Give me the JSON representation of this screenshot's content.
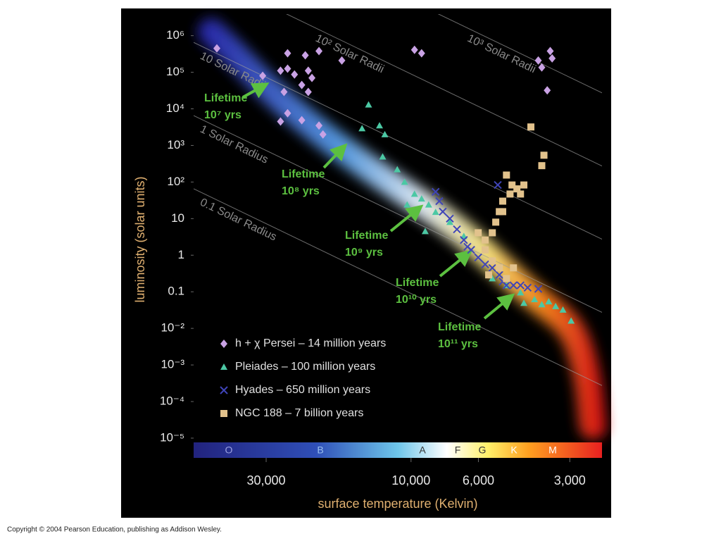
{
  "chart_data": {
    "type": "scatter",
    "x_label": "surface temperature (Kelvin)",
    "y_label": "luminosity (solar units)",
    "x_log": true,
    "y_log": true,
    "x_reversed": true,
    "xlim": [
      52000,
      2350
    ],
    "ylim": [
      8e-06,
      2000000
    ],
    "xticks": [
      {
        "value": 30000,
        "label": "30,000"
      },
      {
        "value": 10000,
        "label": "10,000"
      },
      {
        "value": 6000,
        "label": "6,000"
      },
      {
        "value": 3000,
        "label": "3,000"
      }
    ],
    "yticks": [
      {
        "value": 1000000,
        "label": "10⁶"
      },
      {
        "value": 100000,
        "label": "10⁵"
      },
      {
        "value": 10000,
        "label": "10⁴"
      },
      {
        "value": 1000,
        "label": "10³"
      },
      {
        "value": 100,
        "label": "10²"
      },
      10,
      1,
      0.1,
      {
        "value": 0.01,
        "label": "10⁻²"
      },
      {
        "value": 0.001,
        "label": "10⁻³"
      },
      {
        "value": 0.0001,
        "label": "10⁻⁴"
      },
      {
        "value": 1e-05,
        "label": "10⁻⁵"
      }
    ],
    "spectral_classes": [
      "O",
      "B",
      "A",
      "F",
      "G",
      "K",
      "M"
    ],
    "radius_lines": [
      {
        "radius": 0.1,
        "label": "0.1 Solar Radius"
      },
      {
        "radius": 1,
        "label": "1 Solar Radius"
      },
      {
        "radius": 10,
        "label": "10 Solar Radii"
      },
      {
        "radius": 100,
        "label": "10² Solar Radii"
      },
      {
        "radius": 1000,
        "label": "10³ Solar Radii"
      }
    ],
    "annotations": [
      [
        "Lifetime",
        "10⁷ yrs"
      ],
      [
        "Lifetime",
        "10⁸ yrs"
      ],
      [
        "Lifetime",
        "10⁹ yrs"
      ],
      [
        "Lifetime",
        "10¹⁰ yrs"
      ],
      [
        "Lifetime",
        "10¹¹ yrs"
      ]
    ],
    "series": [
      {
        "name": "h + χ Persei – 14 million years",
        "color": "#c9a2e4",
        "marker": "diamond",
        "x": [
          43600,
          30800,
          25500,
          22300,
          20100,
          25500,
          26900,
          24200,
          21800,
          21200,
          22900,
          26200,
          21800,
          25500,
          22900,
          20100,
          19500,
          26900,
          16900,
          9740,
          9230,
          3810,
          3710,
          3480,
          3430,
          3560
        ],
        "values": [
          450000,
          80000,
          330000,
          290000,
          380000,
          125000,
          110000,
          87000,
          110000,
          70000,
          45000,
          29000,
          29000,
          7600,
          4900,
          3500,
          2000,
          4500,
          210000,
          410000,
          330000,
          210000,
          135000,
          380000,
          240000,
          32000
        ]
      },
      {
        "name": "Pleiades – 100 million years",
        "color": "#4cc8a4",
        "marker": "triangle",
        "x": [
          13800,
          14500,
          12700,
          12200,
          12400,
          11100,
          10500,
          9740,
          9230,
          8750,
          10300,
          8300,
          8980,
          7450,
          6700,
          5400,
          4850,
          4360,
          3920,
          3520,
          3340,
          3160,
          2970,
          4250,
          3710
        ],
        "values": [
          13000,
          2900,
          3500,
          2000,
          490,
          220,
          100,
          47,
          35,
          24,
          24,
          15,
          4.5,
          8,
          3.3,
          0.23,
          0.15,
          0.095,
          0.062,
          0.054,
          0.04,
          0.032,
          0.016,
          0.049,
          0.045
        ]
      },
      {
        "name": "Hyades – 650 million years",
        "color": "#3f44b8",
        "marker": "x",
        "x": [
          8300,
          8070,
          7860,
          7450,
          7060,
          6700,
          6520,
          6340,
          6010,
          5700,
          5400,
          5120,
          4990,
          4850,
          4600,
          4360,
          4130,
          3810,
          5180
        ],
        "values": [
          54,
          30,
          15.5,
          10,
          5.1,
          2.6,
          1.7,
          1.4,
          0.87,
          0.56,
          0.45,
          0.29,
          0.19,
          0.15,
          0.15,
          0.15,
          0.13,
          0.12,
          83
        ]
      },
      {
        "name": "NGC 188 – 7 billion years",
        "color": "#e2c28c",
        "marker": "square",
        "x": [
          4030,
          3650,
          3710,
          4850,
          4480,
          4720,
          4990,
          5120,
          5260,
          5400,
          5700,
          6010,
          5700,
          5400,
          5120,
          5550,
          4850,
          4600,
          4990,
          4650,
          4250,
          4360
        ],
        "values": [
          3200,
          540,
          280,
          155,
          65,
          47,
          30,
          15.5,
          8,
          4.1,
          2.6,
          4.1,
          1.4,
          0.7,
          0.45,
          0.29,
          0.23,
          0.45,
          15.5,
          83,
          83,
          47
        ]
      }
    ]
  },
  "copyright": "Copyright © 2004 Pearson Education, publishing as Addison Wesley."
}
